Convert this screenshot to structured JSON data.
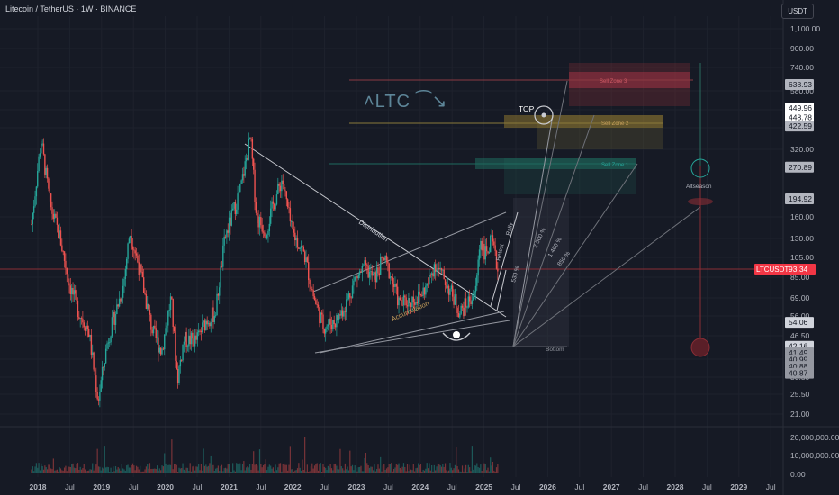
{
  "header": {
    "title": "Litecoin / TetherUS · 1W · BINANCE",
    "currency": "USDT",
    "brand": "˄LTC ⁀↘"
  },
  "colors": {
    "background": "#161a25",
    "up": "#26a69a",
    "down": "#ef5350",
    "grid": "#1e222d",
    "text": "#b2b5be"
  },
  "annotations": {
    "distribution": "Distribution",
    "accumulation": "Accumulation",
    "top": "TOP",
    "bottom": "Bottom",
    "rally": "Rally",
    "retest": "Retest",
    "sell_zone_1": "Sell Zone 1",
    "sell_zone_2": "Sell Zone 2",
    "sell_zone_3": "Sell Zone 3",
    "altseason": "Altseason",
    "pct_530": "530 %",
    "pct_2500": "2 500 %",
    "pct_1460": "1 460 %",
    "pct_850": "850 %"
  },
  "chart_data": {
    "type": "line",
    "scale": "log",
    "series_label": "LTCUSDT",
    "last_price": "93.34",
    "ylim": [
      19,
      1300
    ],
    "y_ticks": [
      "1,100.00",
      "900.00",
      "740.00",
      "580.00",
      "480.00",
      "400.00",
      "320.00",
      "160.00",
      "130.00",
      "105.00",
      "85.00",
      "69.00",
      "56.00",
      "46.50",
      "35.00",
      "30.50",
      "25.50",
      "21.00"
    ],
    "x_ticks": [
      "2018",
      "Jul",
      "2019",
      "Jul",
      "2020",
      "Jul",
      "2021",
      "Jul",
      "2022",
      "Jul",
      "2023",
      "Jul",
      "2024",
      "Jul",
      "2025",
      "Jul",
      "2026",
      "Jul",
      "2027",
      "Jul",
      "2028",
      "Jul",
      "2029",
      "Jul"
    ],
    "price_labels": [
      {
        "label": "638.93",
        "value": 638.93,
        "bg": "#b2b5be"
      },
      {
        "label": "449.96",
        "value": 500,
        "bg": "#ffffff"
      },
      {
        "label": "448.78",
        "value": 455,
        "bg": "#ffffff"
      },
      {
        "label": "422.59",
        "value": 415,
        "bg": "#b2b5be"
      },
      {
        "label": "270.89",
        "value": 270.89,
        "bg": "#b2b5be"
      },
      {
        "label": "194.92",
        "value": 194.92,
        "bg": "#b2b5be"
      },
      {
        "label": "54.06",
        "value": 54.06,
        "bg": "#d1d4dc"
      },
      {
        "label": "42.16",
        "value": 42.16,
        "bg": "#d1d4dc"
      },
      {
        "label": "41.49",
        "value": 39.4,
        "bg": "#9598a1"
      },
      {
        "label": "40.99",
        "value": 36.7,
        "bg": "#9598a1"
      },
      {
        "label": "40.88",
        "value": 34.2,
        "bg": "#9598a1"
      },
      {
        "label": "40.87",
        "value": 31.9,
        "bg": "#9598a1"
      }
    ],
    "volume_ticks": [
      "20,000,000.00",
      "10,000,000.00",
      "0.00"
    ],
    "price_path": [
      [
        2017.9,
        150
      ],
      [
        2018.05,
        360
      ],
      [
        2018.2,
        180
      ],
      [
        2018.35,
        130
      ],
      [
        2018.5,
        80
      ],
      [
        2018.65,
        60
      ],
      [
        2018.8,
        50
      ],
      [
        2018.95,
        24
      ],
      [
        2019.1,
        45
      ],
      [
        2019.35,
        80
      ],
      [
        2019.45,
        140
      ],
      [
        2019.6,
        95
      ],
      [
        2019.8,
        50
      ],
      [
        2019.95,
        40
      ],
      [
        2020.1,
        70
      ],
      [
        2020.2,
        30
      ],
      [
        2020.3,
        45
      ],
      [
        2020.5,
        45
      ],
      [
        2020.65,
        55
      ],
      [
        2020.8,
        60
      ],
      [
        2020.95,
        130
      ],
      [
        2021.05,
        160
      ],
      [
        2021.2,
        220
      ],
      [
        2021.35,
        370
      ],
      [
        2021.45,
        160
      ],
      [
        2021.6,
        140
      ],
      [
        2021.7,
        180
      ],
      [
        2021.85,
        240
      ],
      [
        2022.0,
        140
      ],
      [
        2022.2,
        110
      ],
      [
        2022.35,
        70
      ],
      [
        2022.5,
        52
      ],
      [
        2022.7,
        55
      ],
      [
        2022.85,
        65
      ],
      [
        2023.0,
        85
      ],
      [
        2023.15,
        95
      ],
      [
        2023.3,
        85
      ],
      [
        2023.45,
        105
      ],
      [
        2023.55,
        90
      ],
      [
        2023.7,
        65
      ],
      [
        2023.85,
        68
      ],
      [
        2024.0,
        70
      ],
      [
        2024.15,
        80
      ],
      [
        2024.25,
        100
      ],
      [
        2024.4,
        85
      ],
      [
        2024.55,
        70
      ],
      [
        2024.65,
        60
      ],
      [
        2024.75,
        65
      ],
      [
        2024.9,
        75
      ],
      [
        2024.97,
        130
      ],
      [
        2025.05,
        110
      ],
      [
        2025.15,
        125
      ],
      [
        2025.25,
        93.34
      ]
    ]
  }
}
